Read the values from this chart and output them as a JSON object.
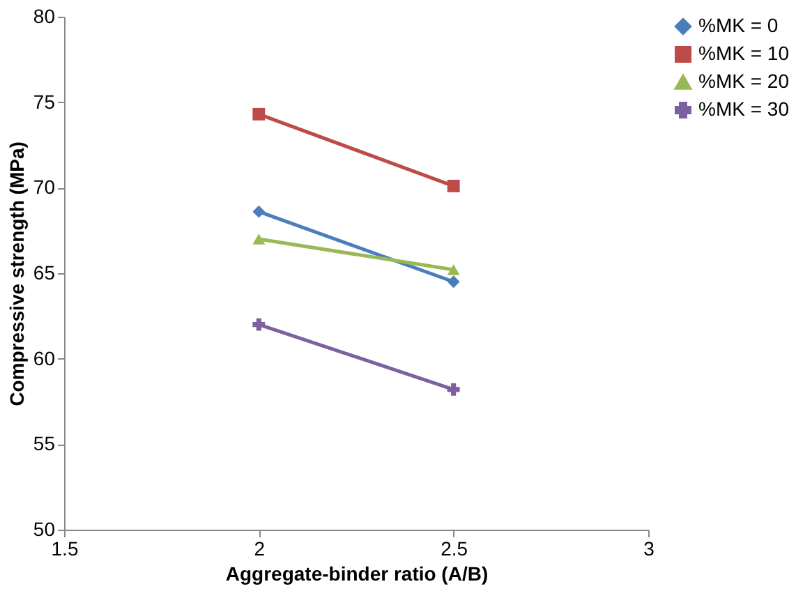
{
  "chart_data": {
    "type": "line",
    "xlabel": "Aggregate-binder ratio (A/B)",
    "ylabel": "Compressive strength (MPa)",
    "x": [
      2,
      2.5
    ],
    "xlim": [
      1.5,
      3
    ],
    "xticks": [
      1.5,
      2,
      2.5,
      3
    ],
    "ylim": [
      50,
      80
    ],
    "yticks": [
      50,
      55,
      60,
      65,
      70,
      75,
      80
    ],
    "grid": false,
    "legend": "right",
    "series": [
      {
        "name": "%MK = 0",
        "color": "#4a7ebb",
        "marker": "diamond",
        "values": [
          68.6,
          64.5
        ]
      },
      {
        "name": "%MK = 10",
        "color": "#be4b48",
        "marker": "square",
        "values": [
          74.3,
          70.1
        ]
      },
      {
        "name": "%MK = 20",
        "color": "#98b954",
        "marker": "triangle",
        "values": [
          67.0,
          65.2
        ]
      },
      {
        "name": "%MK = 30",
        "color": "#7d60a0",
        "marker": "cross",
        "values": [
          62.0,
          58.2
        ]
      }
    ]
  }
}
